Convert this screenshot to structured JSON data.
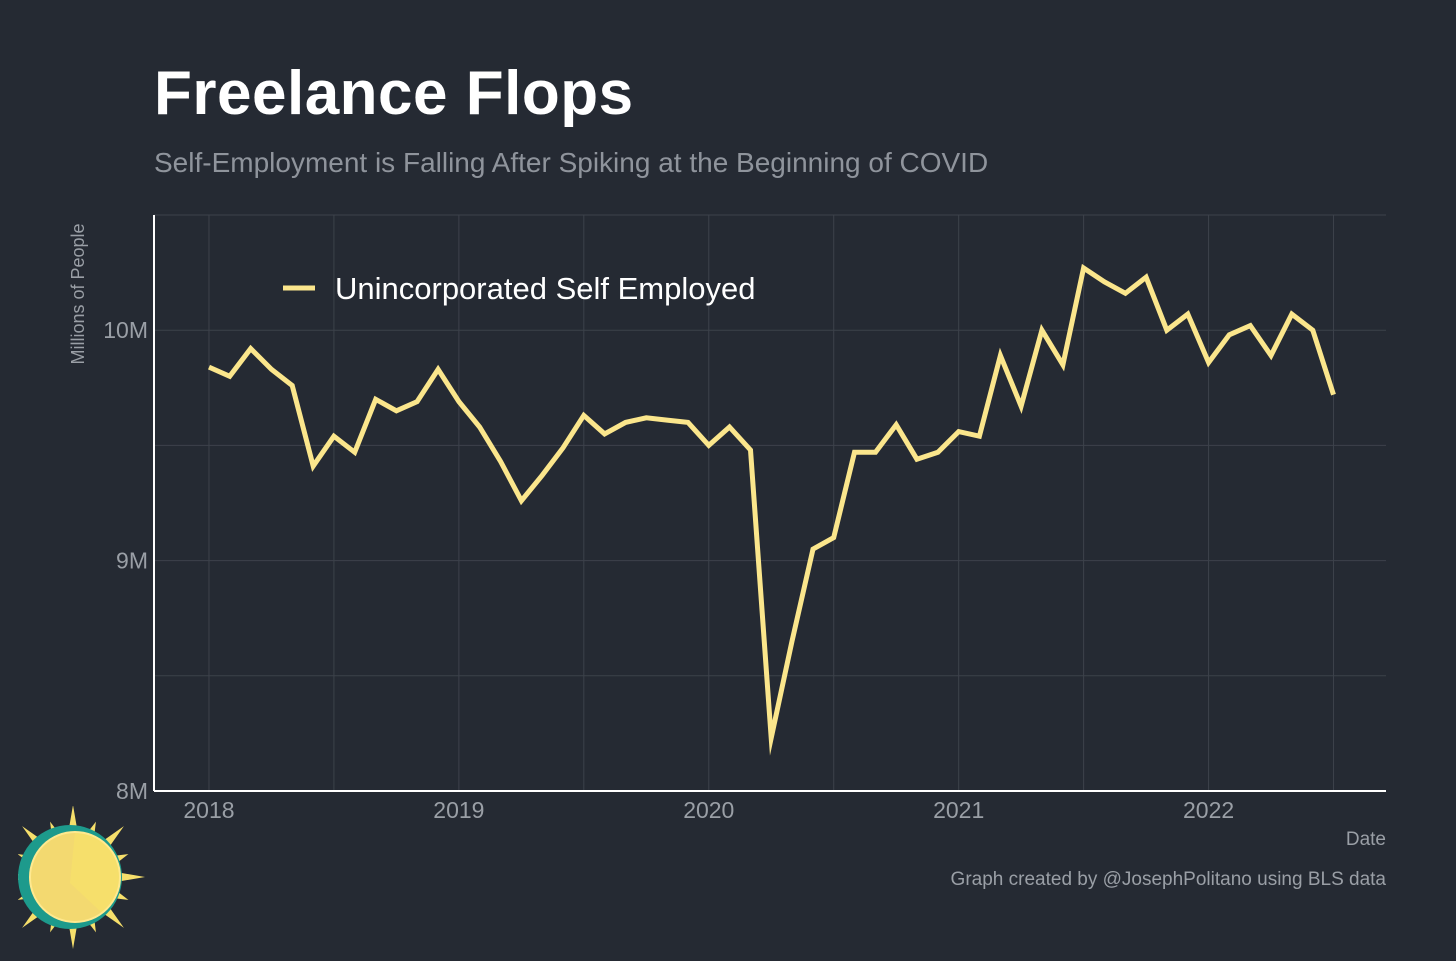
{
  "title": "Freelance Flops",
  "subtitle": "Self-Employment is Falling After Spiking at the Beginning of COVID",
  "caption": "Graph created by @JosephPolitano using BLS data",
  "colors": {
    "background": "#252a33",
    "line": "#fbe68c",
    "grid": "#3d424b",
    "axis": "#ffffff",
    "muted_text": "#9a9fa6"
  },
  "chart_data": {
    "type": "line",
    "title": "Freelance Flops",
    "xlabel": "Date",
    "ylabel": "Millions of People",
    "ylim": [
      8.0,
      10.5
    ],
    "xlim": [
      2017.78,
      2022.71
    ],
    "x_ticks": [
      2018,
      2019,
      2020,
      2021,
      2022
    ],
    "x_tick_labels": [
      "2018",
      "2019",
      "2020",
      "2021",
      "2022"
    ],
    "y_ticks": [
      8.0,
      9.0,
      10.0
    ],
    "y_tick_labels": [
      "8M",
      "9M",
      "10M"
    ],
    "y_minor_gridlines": [
      8.5,
      9.5
    ],
    "grid": true,
    "legend_position": "top-left",
    "series": [
      {
        "name": "Unincorporated Self Employed",
        "color": "#fbe68c",
        "x": [
          2018.0,
          2018.083,
          2018.167,
          2018.25,
          2018.333,
          2018.417,
          2018.5,
          2018.583,
          2018.667,
          2018.75,
          2018.833,
          2018.917,
          2019.0,
          2019.083,
          2019.167,
          2019.25,
          2019.333,
          2019.417,
          2019.5,
          2019.583,
          2019.667,
          2019.75,
          2019.833,
          2019.917,
          2020.0,
          2020.083,
          2020.167,
          2020.25,
          2020.333,
          2020.417,
          2020.5,
          2020.583,
          2020.667,
          2020.75,
          2020.833,
          2020.917,
          2021.0,
          2021.083,
          2021.167,
          2021.25,
          2021.333,
          2021.417,
          2021.5,
          2021.583,
          2021.667,
          2021.75,
          2021.833,
          2021.917,
          2022.0,
          2022.083,
          2022.167,
          2022.25,
          2022.333,
          2022.417,
          2022.5
        ],
        "values": [
          9.84,
          9.8,
          9.92,
          9.83,
          9.76,
          9.41,
          9.54,
          9.47,
          9.7,
          9.65,
          9.69,
          9.83,
          9.69,
          9.58,
          9.43,
          9.26,
          9.37,
          9.49,
          9.63,
          9.55,
          9.6,
          9.62,
          9.61,
          9.6,
          9.5,
          9.58,
          9.48,
          8.23,
          8.65,
          9.05,
          9.1,
          9.47,
          9.47,
          9.59,
          9.44,
          9.47,
          9.56,
          9.54,
          9.89,
          9.67,
          10.0,
          9.85,
          10.27,
          10.21,
          10.16,
          10.23,
          10.0,
          10.07,
          9.86,
          9.98,
          10.02,
          9.89,
          10.07,
          10.0,
          9.72
        ]
      }
    ]
  }
}
